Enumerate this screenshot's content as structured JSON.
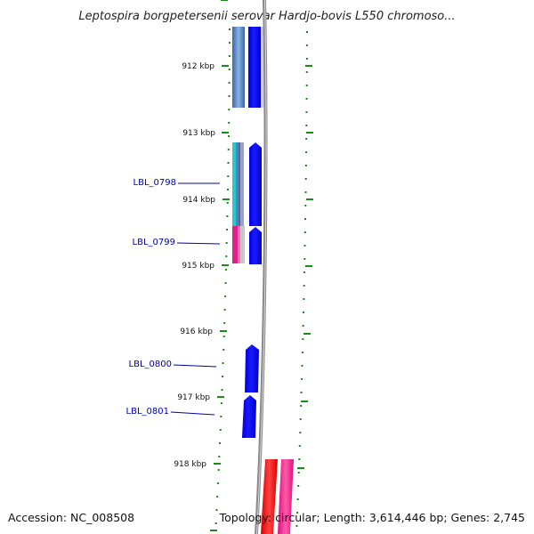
{
  "title": "Leptospira borgpetersenii serovar Hardjo-bovis L550 chromoso...",
  "ticks": [
    "912 kbp",
    "913 kbp",
    "914 kbp",
    "915 kbp",
    "916 kbp",
    "917 kbp",
    "918 kbp"
  ],
  "gene_labels": [
    "LBL_0798",
    "LBL_0799",
    "LBL_0800",
    "LBL_0801"
  ],
  "footer": {
    "accession": "Accession: NC_008508",
    "summary": "Topology: circular; Length: 3,614,446 bp; Genes: 2,745"
  },
  "colors": {
    "forward_strand": "#0000ff",
    "backbone": "#888888",
    "gc_dots": "#1a8a1a",
    "label": "#0000b0",
    "rna_red": "#ff0000",
    "rna_pink": "#ff1493"
  }
}
